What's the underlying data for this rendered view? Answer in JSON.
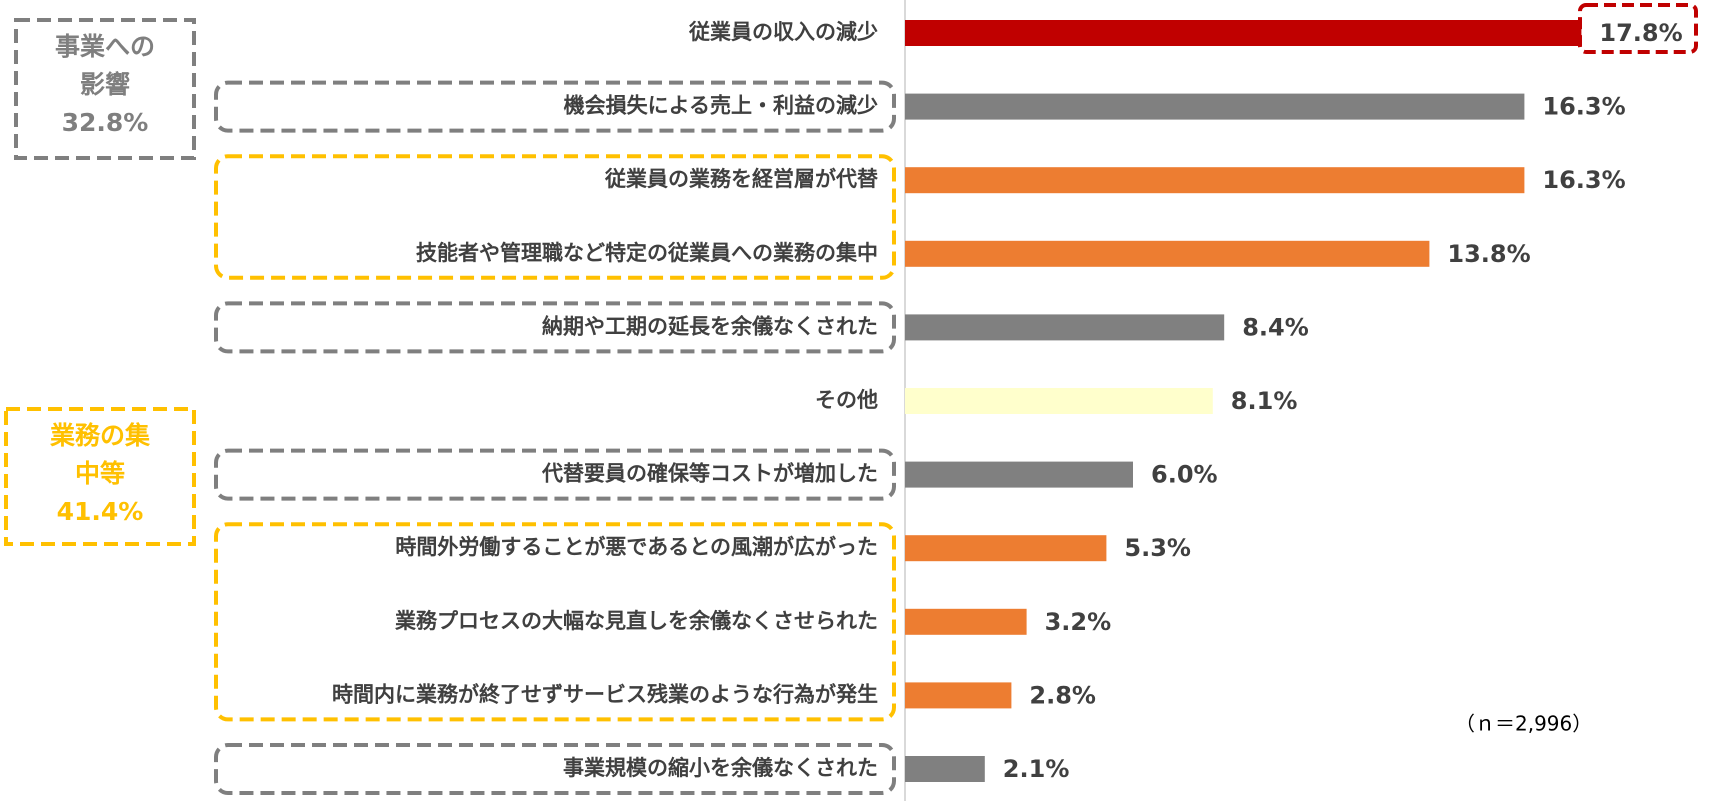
{
  "chart_data": {
    "type": "hbar",
    "categories": [
      "従業員の収入の減少",
      "機会損失による売上・利益の減少",
      "従業員の業務を経営層が代替",
      "技能者や管理職など特定の従業員への業務の集中",
      "納期や工期の延長を余儀なくされた",
      "その他",
      "代替要員の確保等コストが増加した",
      "時間外労働することが悪であるとの風潮が広がった",
      "業務プロセスの大幅な見直しを余儀なくさせられた",
      "時間内に業務が終了せずサービス残業のような行為が発生",
      "事業規模の縮小を余儀なくされた"
    ],
    "values": [
      17.8,
      16.3,
      16.3,
      13.8,
      8.4,
      8.1,
      6.0,
      5.3,
      3.2,
      2.8,
      2.1
    ],
    "value_labels": [
      "17.8%",
      "16.3%",
      "16.3%",
      "13.8%",
      "8.4%",
      "8.1%",
      "6.0%",
      "5.3%",
      "3.2%",
      "2.8%",
      "2.1%"
    ],
    "colors": [
      "#c00000",
      "#808080",
      "#ed7d31",
      "#ed7d31",
      "#808080",
      "#ffffcc",
      "#808080",
      "#ed7d31",
      "#ed7d31",
      "#ed7d31",
      "#808080"
    ],
    "annotations": [
      {
        "lines": [
          "事業への",
          "影響",
          "32.8%"
        ],
        "color": "#7f7f7f"
      },
      {
        "lines": [
          "業務の集",
          "中等",
          "41.4%"
        ],
        "color": "#ffc000"
      }
    ],
    "note": "（ｎ＝2,996）"
  }
}
